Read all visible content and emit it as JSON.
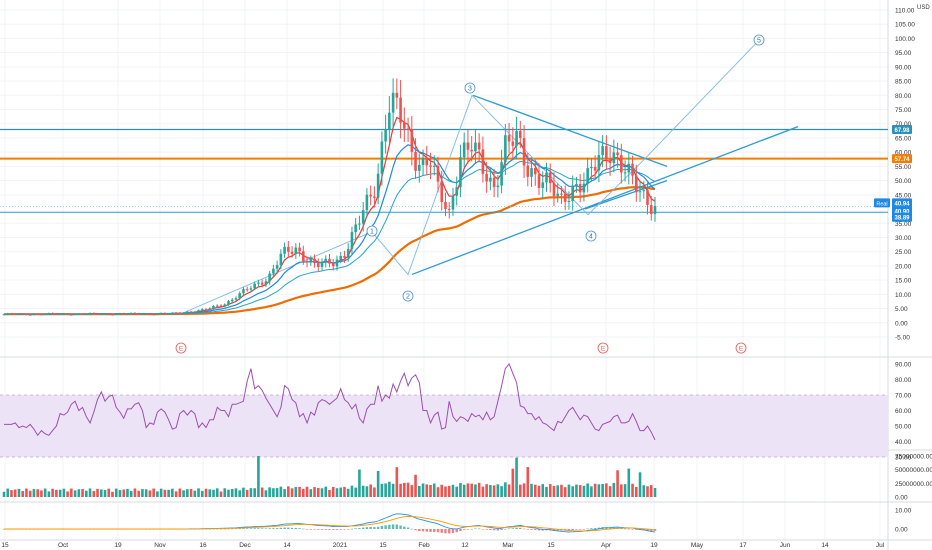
{
  "currency": "USD",
  "price_axis": {
    "ticks": [
      "110.00",
      "105.00",
      "100.00",
      "95.00",
      "90.00",
      "85.00",
      "80.00",
      "75.00",
      "70.00",
      "65.00",
      "60.00",
      "55.00",
      "50.00",
      "45.00",
      "35.00",
      "30.00",
      "25.00",
      "20.00",
      "15.00",
      "10.00",
      "5.00",
      "0.00",
      "-5.00"
    ],
    "tick_values": [
      110,
      105,
      100,
      95,
      90,
      85,
      80,
      75,
      70,
      65,
      60,
      55,
      50,
      45,
      35,
      30,
      25,
      20,
      15,
      10,
      5,
      0,
      -5
    ],
    "range": [
      -7,
      112
    ]
  },
  "price_badges": [
    {
      "label": "67.98",
      "value": 67.98,
      "color": "#2d8fb8",
      "kind": "line"
    },
    {
      "label": "57.74",
      "value": 57.74,
      "color": "#f57c00",
      "kind": "line"
    },
    {
      "label": "40.94",
      "value": 40.94,
      "color": "#1e88e5",
      "kind": "last"
    },
    {
      "label": "40.90",
      "value": 40.9,
      "color": "#1e88e5",
      "kind": "last"
    },
    {
      "label": "38.89",
      "value": 38.89,
      "color": "#1e88e5",
      "kind": "line"
    }
  ],
  "last_price_label": "Real",
  "time_axis": [
    "15",
    "Oct",
    "19",
    "Nov",
    "16",
    "Dec",
    "14",
    "2021",
    "15",
    "Feb",
    "12",
    "Mar",
    "15",
    "Apr",
    "19",
    "May",
    "17",
    "Jun",
    "14",
    "Jul"
  ],
  "earnings_markers": [
    "E",
    "E",
    "E"
  ],
  "wave_labels": [
    "1",
    "2",
    "3",
    "4",
    "5"
  ],
  "rsi_panel": {
    "ticks": [
      "90.00",
      "80.00",
      "70.00",
      "60.00",
      "50.00",
      "40.00",
      "30.00"
    ],
    "tick_values": [
      90,
      80,
      70,
      60,
      50,
      40,
      30
    ],
    "upper_band": 70,
    "lower_band": 30,
    "band_color": "#ede3f7",
    "line_color": "#9c4fb0",
    "values": [
      51,
      51,
      51,
      52,
      49,
      50,
      49,
      51,
      48,
      44,
      47,
      45,
      44,
      47,
      50,
      58,
      57,
      59,
      64,
      66,
      60,
      62,
      56,
      52,
      59,
      67,
      72,
      66,
      69,
      70,
      62,
      59,
      55,
      61,
      61,
      64,
      65,
      60,
      49,
      52,
      51,
      59,
      61,
      59,
      54,
      48,
      49,
      58,
      60,
      57,
      60,
      58,
      49,
      52,
      49,
      54,
      54,
      62,
      60,
      60,
      56,
      64,
      64,
      65,
      66,
      79,
      87,
      74,
      76,
      73,
      68,
      64,
      60,
      56,
      62,
      76,
      74,
      67,
      65,
      56,
      58,
      52,
      59,
      57,
      65,
      67,
      66,
      64,
      66,
      68,
      74,
      67,
      65,
      61,
      64,
      55,
      52,
      61,
      64,
      64,
      76,
      66,
      70,
      68,
      77,
      72,
      79,
      84,
      76,
      81,
      83,
      78,
      60,
      60,
      52,
      57,
      59,
      48,
      49,
      66,
      56,
      53,
      56,
      55,
      53,
      58,
      56,
      57,
      54,
      59,
      54,
      56,
      66,
      76,
      87,
      90,
      84,
      78,
      63,
      62,
      58,
      58,
      54,
      56,
      52,
      51,
      49,
      47,
      53,
      52,
      56,
      60,
      62,
      58,
      54,
      57,
      56,
      52,
      48,
      47,
      51,
      52,
      53,
      56,
      57,
      52,
      52,
      53,
      58,
      53,
      47,
      47,
      50,
      46,
      41
    ]
  },
  "volume_panel": {
    "ticks": [
      "75000000.00",
      "50000000.00",
      "25000000.00",
      "0.00"
    ],
    "tick_values": [
      75000000,
      50000000,
      25000000,
      0
    ],
    "up_color": "#26a69a",
    "down_color": "#ef5350"
  },
  "macd_panel": {
    "ticks": [
      "10.00",
      "0.00"
    ],
    "tick_values": [
      10,
      0
    ],
    "macd_color": "#2196f3",
    "signal_color": "#ff9800"
  },
  "colors": {
    "up": "#26a69a",
    "down": "#ef5350",
    "ema_red": "#e53935",
    "ema_blue": "#1e88e5",
    "ema_cyan": "#26a3c4",
    "ema_orange": "#ef6c00",
    "trendline": "#2d9bd3",
    "wave": "#7cb9e8",
    "hline_teal": "#2d8fb8",
    "hline_orange": "#f57c00"
  },
  "chart_data": [
    {
      "type": "candlestick",
      "title": "",
      "ylabel": "USD",
      "ylim": [
        -7,
        112
      ],
      "x_axis_labels": [
        "15",
        "Oct",
        "19",
        "Nov",
        "16",
        "Dec",
        "14",
        "2021",
        "15",
        "Feb",
        "12",
        "Mar",
        "15",
        "Apr",
        "19",
        "May",
        "17",
        "Jun",
        "14",
        "Jul"
      ],
      "description_series": [
        {
          "name": "EMA fast",
          "color": "#e53935"
        },
        {
          "name": "EMA medium",
          "color": "#1e88e5"
        },
        {
          "name": "EMA slow",
          "color": "#26a3c4"
        },
        {
          "name": "EMA long",
          "color": "#ef6c00"
        }
      ],
      "horizontal_levels": [
        67.98,
        57.74,
        38.89
      ],
      "last_price": 40.94,
      "wave_points": [
        {
          "label": "1",
          "date": "2021-01-08",
          "value": 32
        },
        {
          "label": "2",
          "date": "2021-01-26",
          "value": 17
        },
        {
          "label": "3",
          "date": "2021-02-12",
          "value": 80
        },
        {
          "label": "4",
          "date": "2021-03-20",
          "value": 38
        },
        {
          "label": "5",
          "date": "2021-05-25",
          "value": 99
        }
      ]
    },
    {
      "type": "line",
      "title": "",
      "ylim": [
        30,
        90
      ],
      "reference_lines": [
        70,
        30
      ]
    },
    {
      "type": "bar",
      "title": "",
      "ylim": [
        0,
        80000000
      ]
    },
    {
      "type": "line",
      "title": "",
      "ylim": [
        -5,
        15
      ]
    }
  ]
}
